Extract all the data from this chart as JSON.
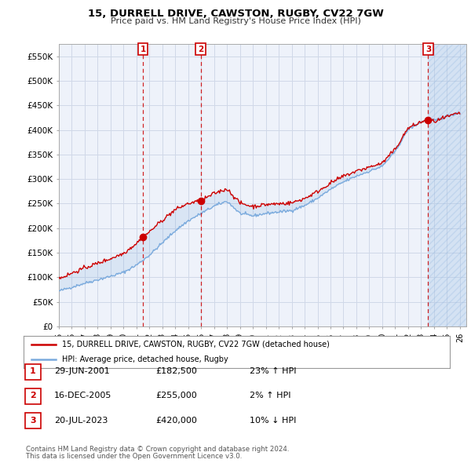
{
  "title": "15, DURRELL DRIVE, CAWSTON, RUGBY, CV22 7GW",
  "subtitle": "Price paid vs. HM Land Registry's House Price Index (HPI)",
  "ylim": [
    0,
    575000
  ],
  "yticks": [
    0,
    50000,
    100000,
    150000,
    200000,
    250000,
    300000,
    350000,
    400000,
    450000,
    500000,
    550000
  ],
  "ytick_labels": [
    "£0",
    "£50K",
    "£100K",
    "£150K",
    "£200K",
    "£250K",
    "£300K",
    "£350K",
    "£400K",
    "£450K",
    "£500K",
    "£550K"
  ],
  "xlim_start": 1995.0,
  "xlim_end": 2026.5,
  "background_color": "#ffffff",
  "plot_bg_color": "#eef2fa",
  "grid_color": "#d0d8e8",
  "hpi_color": "#7aaadd",
  "price_color": "#cc0000",
  "hatch_color": "#c8d4e8",
  "transactions": [
    {
      "label": "1",
      "year": 2001.493,
      "price": 182500,
      "pct": "23%",
      "dir": "↑",
      "date": "29-JUN-2001"
    },
    {
      "label": "2",
      "year": 2005.958,
      "price": 255000,
      "pct": "2%",
      "dir": "↑",
      "date": "16-DEC-2005"
    },
    {
      "label": "3",
      "year": 2023.554,
      "price": 420000,
      "pct": "10%",
      "dir": "↓",
      "date": "20-JUL-2023"
    }
  ],
  "legend_line1": "15, DURRELL DRIVE, CAWSTON, RUGBY, CV22 7GW (detached house)",
  "legend_line2": "HPI: Average price, detached house, Rugby",
  "footer1": "Contains HM Land Registry data © Crown copyright and database right 2024.",
  "footer2": "This data is licensed under the Open Government Licence v3.0.",
  "table_rows": [
    {
      "num": "1",
      "date": "29-JUN-2001",
      "price": "£182,500",
      "pct": "23% ↑ HPI"
    },
    {
      "num": "2",
      "date": "16-DEC-2005",
      "price": "£255,000",
      "pct": "2% ↑ HPI"
    },
    {
      "num": "3",
      "date": "20-JUL-2023",
      "price": "£420,000",
      "pct": "10% ↓ HPI"
    }
  ]
}
